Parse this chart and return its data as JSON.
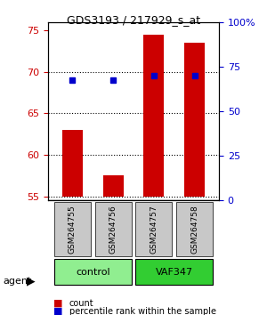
{
  "title": "GDS3193 / 217929_s_at",
  "samples": [
    "GSM264755",
    "GSM264756",
    "GSM264757",
    "GSM264758"
  ],
  "groups": [
    "control",
    "control",
    "VAF347",
    "VAF347"
  ],
  "group_colors": [
    "#90EE90",
    "#90EE90",
    "#32CD32",
    "#32CD32"
  ],
  "bar_values": [
    63.0,
    57.5,
    74.5,
    73.5
  ],
  "dot_values": [
    69.0,
    69.0,
    69.5,
    69.5
  ],
  "bar_color": "#CC0000",
  "dot_color": "#0000CC",
  "ylim_left": [
    54.5,
    76
  ],
  "ylim_right": [
    0,
    100
  ],
  "yticks_left": [
    55,
    60,
    65,
    70,
    75
  ],
  "yticks_right": [
    0,
    25,
    50,
    75,
    100
  ],
  "ytick_labels_right": [
    "0",
    "25",
    "50",
    "75",
    "100%"
  ],
  "bar_bottom": 55,
  "legend_count_label": "count",
  "legend_pct_label": "percentile rank within the sample",
  "agent_label": "agent",
  "group_label_control": "control",
  "group_label_vaf": "VAF347",
  "grid_color": "#000000",
  "sample_bg_color": "#C8C8C8"
}
